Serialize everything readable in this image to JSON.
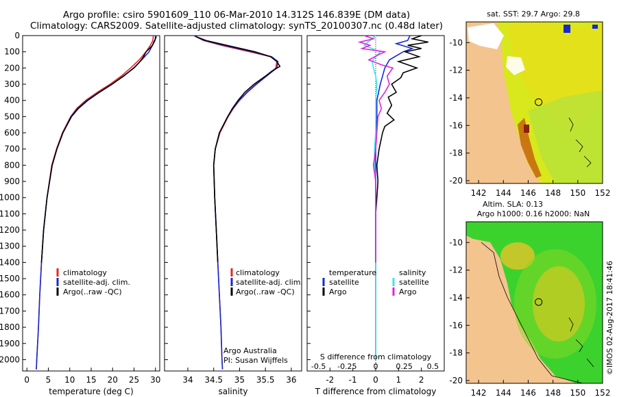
{
  "header": {
    "line1": "Argo profile: csiro 5901609_110 06-Mar-2010 14.312S 146.839E (DM data)",
    "line2": "Climatology: CARS2009. Satellite-adjusted climatology: synTS_20100307.nc (0.48d later)"
  },
  "colors": {
    "climatology": "#e8241e",
    "satellite": "#1428d4",
    "argo": "#000000",
    "cyan": "#38e6f0",
    "magenta": "#e020e0"
  },
  "depth_axis": {
    "ticks": [
      0,
      100,
      200,
      300,
      400,
      500,
      600,
      700,
      800,
      900,
      1000,
      1100,
      1200,
      1300,
      1400,
      1500,
      1600,
      1700,
      1800,
      1900,
      2000
    ],
    "range": [
      0,
      2070
    ]
  },
  "chart_data": [
    {
      "type": "line",
      "name": "temperature-profile",
      "xlabel": "temperature (deg C)",
      "ylabel": "depth",
      "xlim": [
        -1,
        31
      ],
      "xticks": [
        0,
        5,
        10,
        15,
        20,
        25,
        30
      ],
      "legend": [
        "climatology",
        "satellite-adj. clim.",
        "Argo(..raw -QC)"
      ],
      "series": [
        {
          "name": "climatology",
          "depth": [
            0,
            30,
            60,
            100,
            150,
            200,
            250,
            300,
            350,
            400,
            450,
            500,
            600,
            700,
            800,
            1000,
            1200,
            1400,
            1600,
            1800,
            2000,
            2060
          ],
          "values": [
            29.5,
            29.4,
            28.8,
            27.8,
            26.2,
            24.2,
            22.0,
            19.4,
            16.4,
            13.7,
            11.6,
            10.2,
            8.3,
            6.9,
            5.8,
            4.7,
            3.9,
            3.4,
            3.0,
            2.7,
            2.3,
            2.2
          ]
        },
        {
          "name": "satellite-adj. clim.",
          "depth": [
            0,
            30,
            60,
            100,
            150,
            200,
            250,
            300,
            350,
            400,
            450,
            500,
            600,
            700,
            800,
            1000,
            1200,
            1400,
            1600,
            1800,
            2000,
            2060
          ],
          "values": [
            30.0,
            29.9,
            29.3,
            28.5,
            26.8,
            24.9,
            22.6,
            19.8,
            16.8,
            14.0,
            11.8,
            10.3,
            8.4,
            7.0,
            5.9,
            4.7,
            3.9,
            3.4,
            3.0,
            2.7,
            2.3,
            2.2
          ]
        },
        {
          "name": "Argo(..raw -QC)",
          "depth": [
            5,
            20,
            40,
            60,
            80,
            100,
            130,
            160,
            200,
            250,
            300,
            350,
            400,
            450,
            500,
            600,
            700,
            800,
            1000,
            1200,
            1400
          ],
          "values": [
            30.2,
            30.0,
            29.6,
            29.3,
            28.6,
            27.8,
            27.2,
            26.4,
            25.0,
            22.5,
            19.9,
            16.9,
            14.2,
            12.0,
            10.4,
            8.4,
            7.0,
            5.9,
            4.7,
            3.9,
            3.4
          ]
        }
      ]
    },
    {
      "type": "line",
      "name": "salinity-profile",
      "xlabel": "salinity",
      "ylabel": "depth",
      "xlim": [
        33.55,
        36.2
      ],
      "xticks": [
        34,
        34.5,
        35,
        35.5,
        36
      ],
      "legend": [
        "climatology",
        "satellite-adj. clim.",
        "Argo(..raw -QC)"
      ],
      "annotation": [
        "Argo Australia",
        "PI: Susan Wijffels"
      ],
      "series": [
        {
          "name": "climatology",
          "depth": [
            0,
            30,
            60,
            100,
            130,
            160,
            200,
            250,
            300,
            350,
            400,
            450,
            500,
            600,
            700,
            800,
            1000,
            1200,
            1400,
            1600,
            1800,
            2000,
            2060
          ],
          "values": [
            34.12,
            34.3,
            34.65,
            35.2,
            35.6,
            35.72,
            35.7,
            35.52,
            35.33,
            35.15,
            35.0,
            34.88,
            34.78,
            34.62,
            34.53,
            34.5,
            34.52,
            34.55,
            34.58,
            34.61,
            34.64,
            34.66,
            34.67
          ]
        },
        {
          "name": "satellite-adj. clim.",
          "depth": [
            0,
            30,
            60,
            100,
            130,
            160,
            200,
            250,
            300,
            350,
            400,
            450,
            500,
            600,
            700,
            800,
            1000,
            1200,
            1400,
            1600,
            1800,
            2000,
            2060
          ],
          "values": [
            34.12,
            34.32,
            34.7,
            35.25,
            35.62,
            35.74,
            35.72,
            35.52,
            35.32,
            35.14,
            34.99,
            34.87,
            34.77,
            34.61,
            34.53,
            34.5,
            34.52,
            34.55,
            34.58,
            34.61,
            34.64,
            34.66,
            34.67
          ]
        },
        {
          "name": "Argo(..raw -QC)",
          "depth": [
            5,
            30,
            60,
            100,
            130,
            160,
            190,
            220,
            250,
            300,
            350,
            400,
            450,
            500,
            600,
            700,
            800,
            1000,
            1200,
            1400
          ],
          "values": [
            34.15,
            34.35,
            34.75,
            35.3,
            35.6,
            35.72,
            35.78,
            35.62,
            35.5,
            35.28,
            35.1,
            34.97,
            34.86,
            34.77,
            34.61,
            34.53,
            34.5,
            34.52,
            34.55,
            34.58
          ]
        }
      ]
    },
    {
      "type": "line",
      "name": "difference-profile",
      "xlabel": "T difference from climatology",
      "top_label": "S difference from climatology",
      "ylabel": "depth",
      "xlim": [
        -3.0,
        3.0
      ],
      "xticks": [
        -2,
        -1,
        0,
        1,
        2
      ],
      "top_ticks": [
        "-0.5",
        "-0.25",
        "0",
        "0.25",
        "0.5"
      ],
      "legend_temperature": {
        "title": "temperature",
        "items": [
          "satellite",
          "Argo"
        ]
      },
      "legend_salinity": {
        "title": "salinity",
        "items": [
          "satellite",
          "Argo"
        ]
      },
      "series": [
        {
          "name": "T satellite",
          "depth": [
            0,
            30,
            50,
            80,
            100,
            150,
            200,
            250,
            300,
            400,
            500,
            600,
            700,
            800,
            1000,
            1200,
            1400,
            2000
          ],
          "values": [
            1.5,
            1.4,
            0.9,
            1.6,
            1.2,
            0.6,
            0.4,
            0.3,
            0.2,
            0.05,
            0.05,
            0.02,
            0.0,
            0.0,
            0.0,
            0.0,
            0.0,
            0.0
          ]
        },
        {
          "name": "T Argo",
          "depth": [
            0,
            20,
            40,
            60,
            80,
            100,
            130,
            160,
            200,
            230,
            260,
            300,
            350,
            380,
            430,
            480,
            520,
            560,
            600,
            700,
            800,
            900,
            1000,
            1100,
            1200,
            1300,
            1400
          ],
          "values": [
            2.0,
            1.6,
            2.3,
            1.4,
            2.0,
            1.3,
            1.9,
            1.0,
            1.8,
            1.2,
            1.1,
            0.7,
            0.9,
            0.55,
            0.7,
            0.5,
            0.8,
            0.4,
            0.3,
            0.15,
            0.05,
            0.1,
            0.05,
            0.0,
            0.0,
            0.0,
            0.0
          ]
        },
        {
          "name": "S satellite",
          "depth": [
            0,
            30,
            60,
            100,
            130,
            160,
            200,
            250,
            300,
            400,
            500,
            600,
            700,
            800,
            900,
            1000,
            1200,
            1400,
            2000
          ],
          "values": [
            0.0,
            -0.05,
            -0.1,
            0.04,
            0.0,
            -0.03,
            -0.02,
            0.0,
            0.01,
            0.0,
            0.0,
            0.0,
            -0.01,
            -0.01,
            0.0,
            0.0,
            0.0,
            0.0,
            0.0
          ]
        },
        {
          "name": "S Argo",
          "depth": [
            0,
            20,
            40,
            60,
            80,
            100,
            120,
            150,
            180,
            200,
            250,
            300,
            350,
            400,
            450,
            500,
            600,
            700,
            800,
            900,
            1000,
            1100,
            1200,
            1300,
            1400
          ],
          "values": [
            -0.1,
            -0.02,
            -0.14,
            -0.05,
            -0.12,
            0.08,
            0.02,
            -0.06,
            0.05,
            0.15,
            0.1,
            0.12,
            0.08,
            0.03,
            0.05,
            0.02,
            0.01,
            0.0,
            -0.02,
            0.0,
            0.0,
            0.0,
            0.0,
            0.0,
            0.0
          ]
        }
      ]
    },
    {
      "type": "heatmap",
      "name": "sst-map",
      "title": "sat. SST: 29.7  Argo: 29.8",
      "xticks": [
        "142",
        "144",
        "146",
        "148",
        "150",
        "152"
      ],
      "yticks": [
        "-10",
        "-12",
        "-14",
        "-16",
        "-18",
        "-20"
      ],
      "xlim": [
        141,
        152
      ],
      "ylim": [
        -20.2,
        -8.5
      ],
      "profile_location": {
        "lon": 146.839,
        "lat": -14.312
      }
    },
    {
      "type": "heatmap",
      "name": "altimetry-map",
      "title": [
        "Altim. SLA: 0.13",
        "Argo h1000: 0.16 h2000: NaN"
      ],
      "xticks": [
        "142",
        "144",
        "146",
        "148",
        "150",
        "152"
      ],
      "yticks": [
        "-10",
        "-12",
        "-14",
        "-16",
        "-18",
        "-20"
      ],
      "xlim": [
        141,
        152
      ],
      "ylim": [
        -20.2,
        -8.5
      ],
      "profile_location": {
        "lon": 146.839,
        "lat": -14.312
      }
    }
  ],
  "stamp": "©IMOS 02-Aug-2017 18:41:46"
}
